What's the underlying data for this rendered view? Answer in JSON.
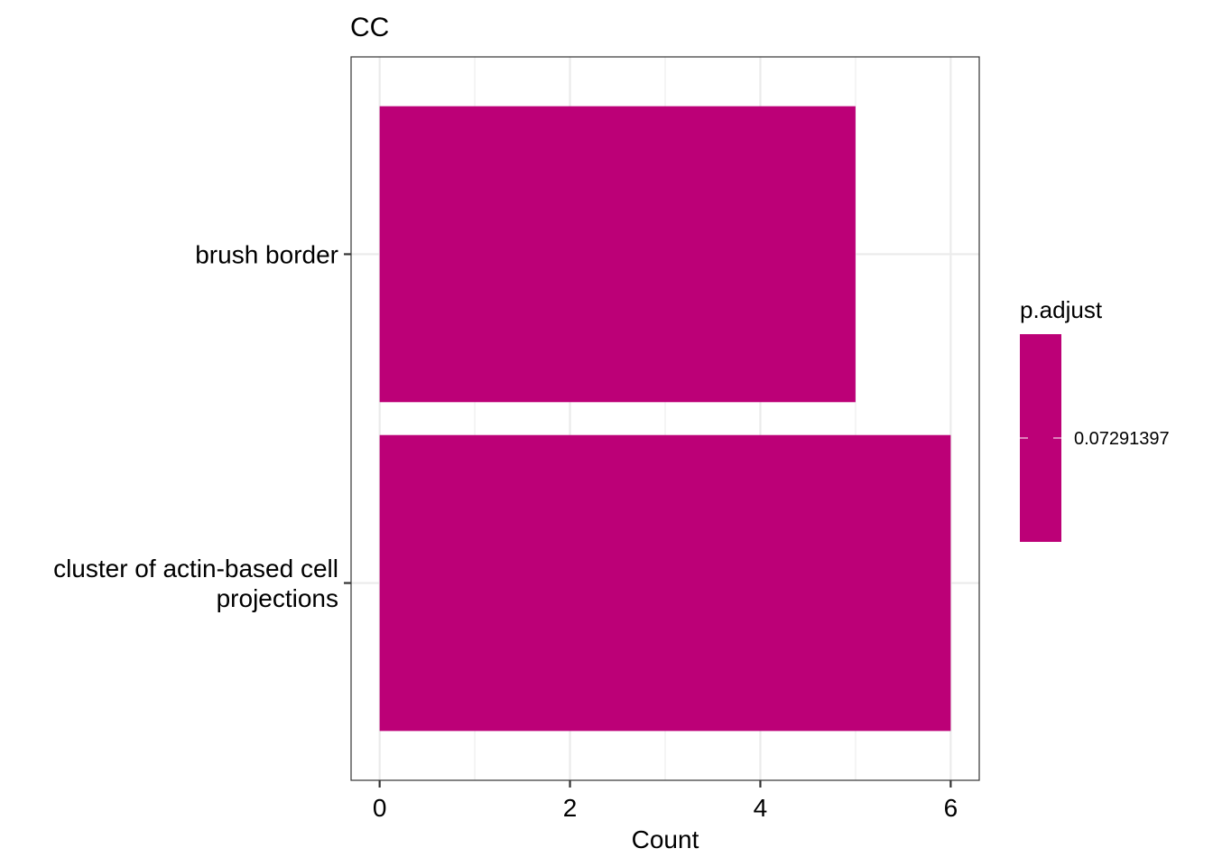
{
  "chart_data": {
    "type": "bar",
    "orientation": "horizontal",
    "title": "CC",
    "xlabel": "Count",
    "ylabel": "",
    "categories": [
      "brush border",
      "cluster of actin-based cell projections"
    ],
    "category_lines": [
      [
        "brush border"
      ],
      [
        "cluster of actin-based cell",
        "projections"
      ]
    ],
    "values": [
      5,
      6
    ],
    "xlim": [
      -0.3,
      6.3
    ],
    "x_ticks": [
      0,
      2,
      4,
      6
    ],
    "grid": true,
    "bar_color": "#BC0077",
    "legend": {
      "title": "p.adjust",
      "label": "0.07291397",
      "placement": "right"
    }
  }
}
